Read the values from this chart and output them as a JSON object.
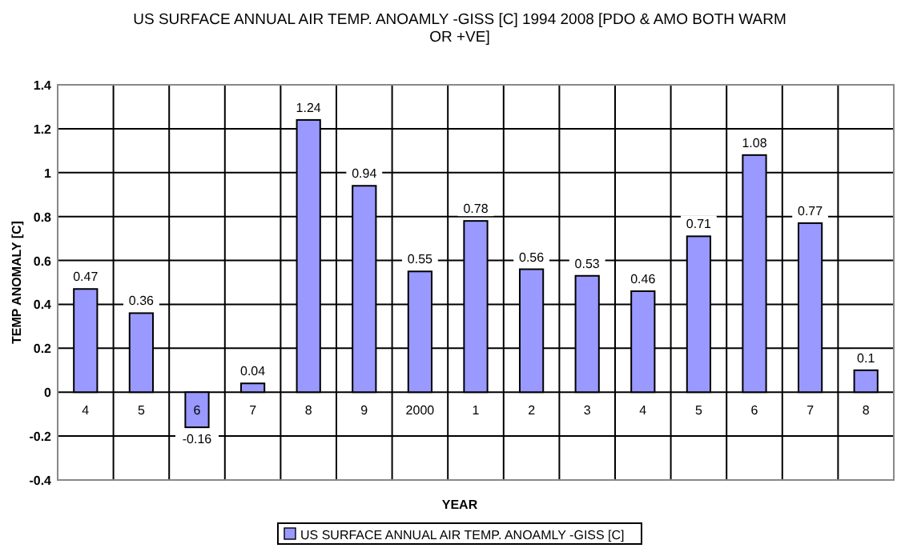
{
  "chart_data": {
    "type": "bar",
    "title": "US SURFACE ANNUAL AIR TEMP. ANOAMLY -GISS [C] 1994 2008 [PDO & AMO BOTH WARM OR +VE]",
    "xlabel": "YEAR",
    "ylabel": "TEMP ANOMALY [C]",
    "categories": [
      "4",
      "5",
      "6",
      "7",
      "8",
      "9",
      "2000",
      "1",
      "2",
      "3",
      "4",
      "5",
      "6",
      "7",
      "8"
    ],
    "series": [
      {
        "name": "US SURFACE ANNUAL AIR TEMP. ANOAMLY -GISS [C]",
        "color": "#9999ff",
        "values": [
          0.47,
          0.36,
          -0.16,
          0.04,
          1.24,
          0.94,
          0.55,
          0.78,
          0.56,
          0.53,
          0.46,
          0.71,
          1.08,
          0.77,
          0.1
        ]
      }
    ],
    "ylim": [
      -0.4,
      1.4
    ],
    "yticks": [
      -0.4,
      -0.2,
      0,
      0.2,
      0.4,
      0.6,
      0.8,
      1,
      1.2,
      1.4
    ],
    "grid": true,
    "data_labels": true,
    "legend": "bottom"
  }
}
